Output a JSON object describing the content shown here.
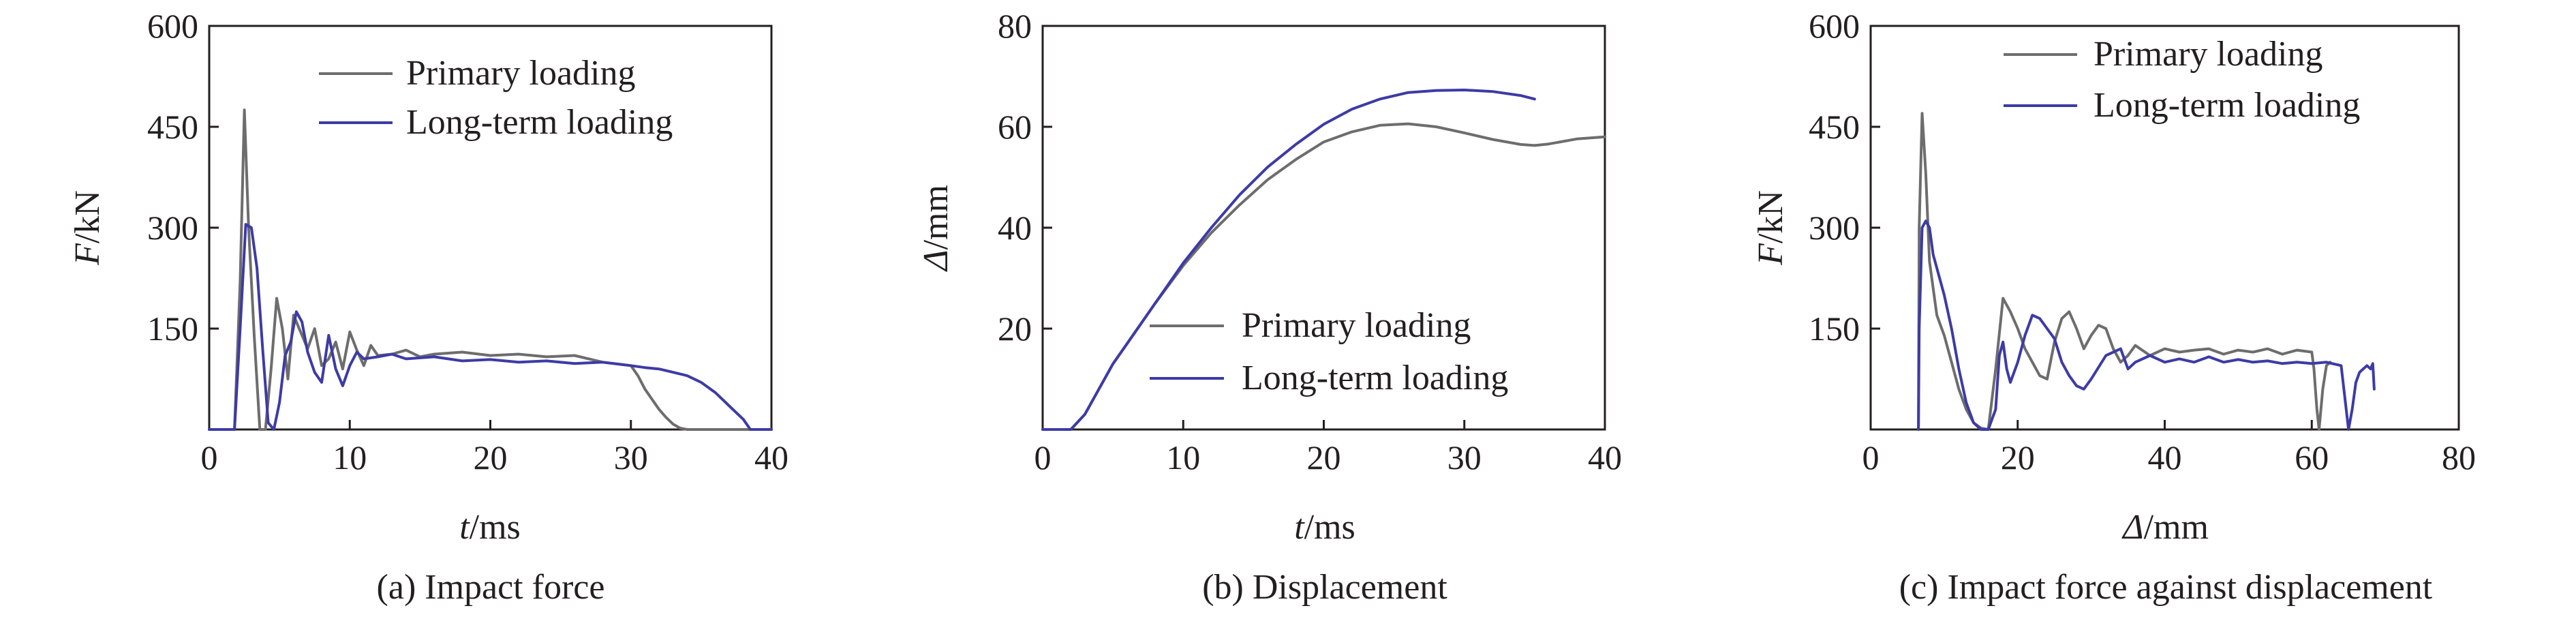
{
  "chart_data": [
    {
      "type": "line",
      "caption": "(a) Impact force",
      "xlabel": {
        "italic": "t",
        "rest": "/ms"
      },
      "ylabel": {
        "italic": "F",
        "rest": "/kN"
      },
      "xlim": [
        0,
        40
      ],
      "ylim": [
        0,
        600
      ],
      "xticks": [
        0,
        10,
        20,
        30,
        40
      ],
      "yticks": [
        150,
        300,
        450,
        600
      ],
      "legend_position": "top-right",
      "series": [
        {
          "name": "Primary loading",
          "color": "#6d6d6d",
          "x": [
            0,
            1.8,
            2.2,
            2.5,
            2.8,
            3.2,
            3.6,
            4.0,
            4.4,
            4.8,
            5.2,
            5.6,
            6.0,
            6.5,
            7.0,
            7.5,
            8.0,
            8.5,
            9.0,
            9.5,
            10.0,
            10.5,
            11.0,
            11.5,
            12.0,
            13.0,
            14.0,
            15.0,
            16.0,
            18.0,
            20.0,
            22.0,
            24.0,
            26.0,
            28.0,
            30.0,
            30.5,
            31.0,
            31.5,
            32.0,
            32.5,
            33.0,
            33.5,
            34.0,
            40
          ],
          "y": [
            0,
            0,
            220,
            475,
            300,
            140,
            0,
            0,
            90,
            195,
            150,
            75,
            170,
            145,
            120,
            150,
            95,
            105,
            130,
            90,
            145,
            118,
            95,
            125,
            110,
            112,
            118,
            108,
            112,
            115,
            110,
            112,
            108,
            110,
            100,
            95,
            80,
            60,
            45,
            30,
            18,
            8,
            2,
            0,
            0
          ]
        },
        {
          "name": "Long-term loading",
          "color": "#3d3ba6",
          "x": [
            0,
            1.8,
            2.2,
            2.6,
            3.0,
            3.4,
            3.8,
            4.2,
            4.6,
            5.0,
            5.4,
            5.8,
            6.2,
            6.6,
            7.0,
            7.5,
            8.0,
            8.5,
            9.0,
            9.5,
            10.0,
            10.5,
            11.0,
            12.0,
            13.0,
            14.0,
            16.0,
            18.0,
            20.0,
            22.0,
            24.0,
            26.0,
            28.0,
            30.0,
            31.0,
            32.0,
            33.0,
            34.0,
            35.0,
            36.0,
            36.5,
            37.0,
            37.5,
            38.0,
            38.5,
            40
          ],
          "y": [
            0,
            0,
            150,
            305,
            300,
            240,
            120,
            10,
            0,
            40,
            110,
            130,
            175,
            160,
            115,
            85,
            70,
            140,
            90,
            65,
            95,
            115,
            105,
            108,
            112,
            105,
            108,
            102,
            104,
            100,
            102,
            98,
            100,
            95,
            92,
            90,
            85,
            80,
            70,
            55,
            45,
            35,
            25,
            15,
            0,
            0
          ]
        }
      ]
    },
    {
      "type": "line",
      "caption": "(b) Displacement",
      "xlabel": {
        "italic": "t",
        "rest": "/ms"
      },
      "ylabel": {
        "italic": "Δ",
        "rest": "/mm"
      },
      "xlim": [
        0,
        40
      ],
      "ylim": [
        0,
        80
      ],
      "xticks": [
        0,
        10,
        20,
        30,
        40
      ],
      "yticks": [
        20,
        40,
        60,
        80
      ],
      "legend_position": "bottom-right",
      "series": [
        {
          "name": "Primary loading",
          "color": "#6d6d6d",
          "x": [
            0,
            2,
            3,
            4,
            5,
            6,
            8,
            10,
            12,
            14,
            16,
            18,
            20,
            22,
            24,
            26,
            28,
            30,
            32,
            34,
            35,
            36,
            38,
            40
          ],
          "y": [
            0,
            0,
            3,
            8,
            13,
            17,
            25,
            32.5,
            39,
            44.5,
            49.5,
            53.5,
            57,
            59,
            60.3,
            60.6,
            60,
            58.8,
            57.5,
            56.5,
            56.3,
            56.6,
            57.6,
            58
          ]
        },
        {
          "name": "Long-term loading",
          "color": "#3d3ba6",
          "x": [
            0,
            2,
            3,
            4,
            5,
            6,
            8,
            10,
            12,
            14,
            16,
            18,
            20,
            22,
            24,
            26,
            28,
            30,
            32,
            34,
            35
          ],
          "y": [
            0,
            0,
            3,
            8,
            13,
            17,
            25,
            33,
            40,
            46.5,
            52,
            56.5,
            60.5,
            63.5,
            65.5,
            66.8,
            67.2,
            67.3,
            67,
            66.2,
            65.5
          ]
        }
      ]
    },
    {
      "type": "line",
      "caption": "(c) Impact force against displacement",
      "xlabel": {
        "italic": "Δ",
        "rest": "/mm"
      },
      "ylabel": {
        "italic": "F",
        "rest": "/kN"
      },
      "xlim": [
        0,
        80
      ],
      "ylim": [
        0,
        600
      ],
      "xticks": [
        0,
        20,
        40,
        60,
        80
      ],
      "yticks": [
        150,
        300,
        450,
        600
      ],
      "legend_position": "top-right",
      "series": [
        {
          "name": "Primary loading",
          "color": "#6d6d6d",
          "x": [
            6.5,
            6.6,
            7.0,
            7.5,
            8.0,
            9.0,
            10.0,
            11.0,
            12.0,
            13.0,
            14.0,
            15.0,
            16.0,
            17.0,
            18.0,
            19.0,
            20.0,
            21.0,
            22.0,
            23.0,
            24.0,
            25.0,
            26.0,
            27.0,
            28.0,
            29.0,
            30.0,
            31.0,
            32.0,
            33.0,
            34.0,
            35.0,
            36.0,
            38.0,
            40.0,
            42.0,
            44.0,
            46.0,
            48.0,
            50.0,
            52.0,
            54.0,
            56.0,
            58.0,
            60.0,
            60.3,
            60.5,
            60.7,
            61.0,
            61.5,
            62.0,
            62.5
          ],
          "y": [
            0,
            300,
            470,
            380,
            250,
            170,
            140,
            100,
            60,
            30,
            10,
            2,
            0,
            90,
            195,
            175,
            150,
            120,
            100,
            80,
            75,
            130,
            165,
            175,
            150,
            120,
            140,
            155,
            150,
            120,
            100,
            110,
            125,
            110,
            120,
            115,
            118,
            120,
            112,
            118,
            115,
            120,
            112,
            118,
            115,
            90,
            60,
            30,
            0,
            60,
            95,
            100
          ]
        },
        {
          "name": "Long-term loading",
          "color": "#3d3ba6",
          "x": [
            6.5,
            6.6,
            7.0,
            7.5,
            8.0,
            8.5,
            9.0,
            10.0,
            11.0,
            12.0,
            13.0,
            14.0,
            15.0,
            16.0,
            17.0,
            17.5,
            18.0,
            18.5,
            19.0,
            20.0,
            21.0,
            22.0,
            23.0,
            24.0,
            25.0,
            26.0,
            27.0,
            28.0,
            29.0,
            30.0,
            32.0,
            34.0,
            35.0,
            36.0,
            38.0,
            40.0,
            42.0,
            44.0,
            46.0,
            48.0,
            50.0,
            52.0,
            54.0,
            56.0,
            58.0,
            60.0,
            62.0,
            64.0,
            65.0,
            65.5,
            66.0,
            66.5,
            67.0,
            67.5,
            68.0,
            68.3,
            68.5
          ],
          "y": [
            0,
            150,
            300,
            310,
            300,
            260,
            240,
            200,
            150,
            90,
            40,
            10,
            0,
            0,
            30,
            110,
            130,
            90,
            70,
            100,
            140,
            170,
            165,
            150,
            135,
            100,
            80,
            65,
            60,
            75,
            110,
            120,
            90,
            100,
            110,
            100,
            105,
            100,
            108,
            100,
            104,
            100,
            102,
            98,
            100,
            98,
            100,
            95,
            0,
            30,
            70,
            85,
            90,
            95,
            90,
            98,
            60
          ]
        }
      ]
    }
  ]
}
